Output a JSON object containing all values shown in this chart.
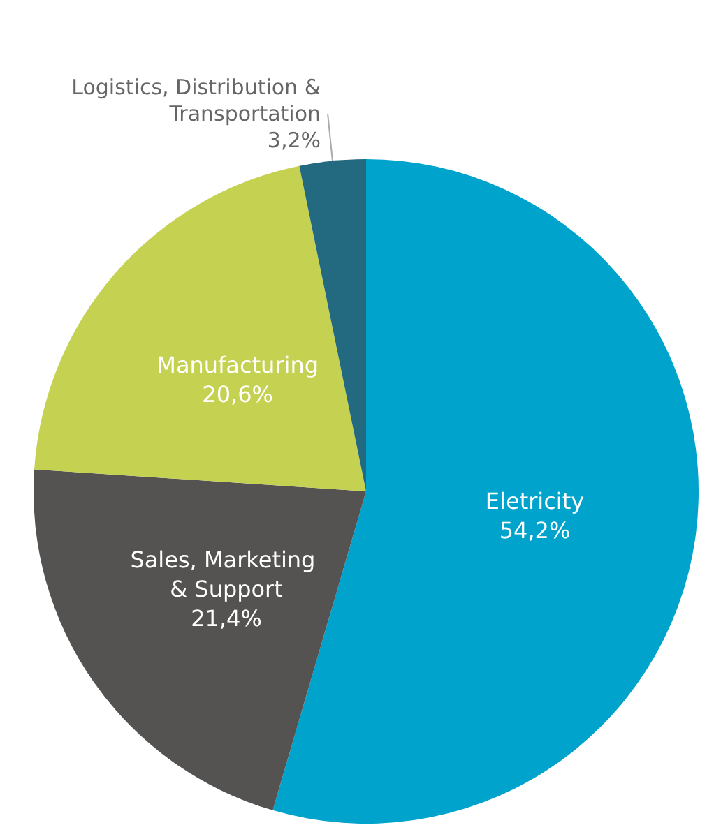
{
  "chart_data": {
    "type": "pie",
    "categories": [
      "Eletricity",
      "Sales, Marketing & Support",
      "Manufacturing",
      "Logistics, Distribution & Transportation"
    ],
    "values": [
      54.2,
      21.4,
      20.6,
      3.2
    ],
    "value_labels": [
      "54,2%",
      "21,4%",
      "20,6%",
      "3,2%"
    ],
    "colors": [
      "#00a3cc",
      "#545352",
      "#c5d150",
      "#236a80"
    ]
  }
}
